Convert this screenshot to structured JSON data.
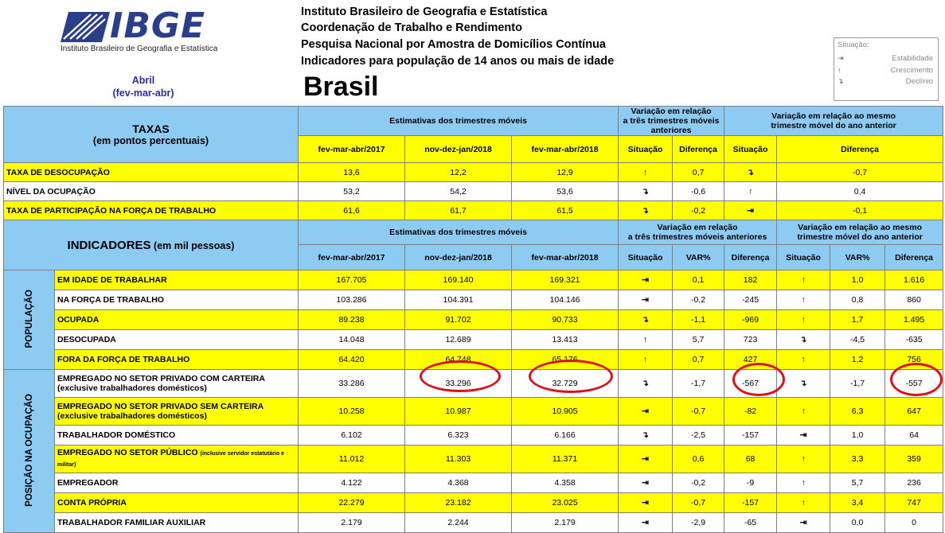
{
  "header": {
    "logo_text": "IBGE",
    "logo_subtitle": "Instituto Brasileiro de Geografia e Estatística",
    "period_month": "Abril",
    "period_range": "(fev-mar-abr)",
    "lines": [
      "Instituto Brasileiro de Geografia e Estatística",
      "Coordenação de Trabalho e Rendimento",
      "Pesquisa Nacional por Amostra de Domicílios Contínua",
      "Indicadores para população de 14 anos ou mais de idade"
    ],
    "region": "Brasil"
  },
  "legend": {
    "title": "Situação:",
    "items": [
      {
        "icon": "arrow-right-bar-icon",
        "glyph": "⇥",
        "label": "Estabilidade"
      },
      {
        "icon": "arrow-up-icon",
        "glyph": "↑",
        "label": "Crescimento"
      },
      {
        "icon": "arrow-down-hook-icon",
        "glyph": "↴",
        "label": "Declínio"
      }
    ]
  },
  "rates": {
    "title": "TAXAS",
    "subtitle": "(em pontos percentuais)",
    "est_header": "Estimativas dos trimestres móveis",
    "var_prev_header_1": "Variação em relação",
    "var_prev_header_2": "a três trimestres móveis anteriores",
    "var_year_header_1": "Variação em relação ao mesmo",
    "var_year_header_2": "trimestre móvel do ano anterior",
    "periods": [
      "fev-mar-abr/2017",
      "nov-dez-jan/2018",
      "fev-mar-abr/2018"
    ],
    "col_situacao": "Situação",
    "col_diferenca": "Diferença",
    "rows": [
      {
        "label": "TAXA DE DESOCUPAÇÃO",
        "v1": "13,6",
        "v2": "12,2",
        "v3": "12,9",
        "s1": "↑",
        "d1": "0,7",
        "s2": "↴",
        "d2": "-0,7",
        "color": "ye"
      },
      {
        "label": "NÍVEL DA OCUPAÇÃO",
        "v1": "53,2",
        "v2": "54,2",
        "v3": "53,6",
        "s1": "↴",
        "d1": "-0,6",
        "s2": "↑",
        "d2": "0,4",
        "color": "wh"
      },
      {
        "label": "TAXA DE PARTICIPAÇÃO NA FORÇA DE TRABALHO",
        "v1": "61,6",
        "v2": "61,7",
        "v3": "61,5",
        "s1": "↴",
        "d1": "-0,2",
        "s2": "⇥",
        "d2": "-0,1",
        "color": "ye"
      }
    ]
  },
  "indicators": {
    "title": "INDICADORES",
    "title_suffix": " (em mil pessoas)",
    "est_header": "Estimativas dos trimestres móveis",
    "var_prev_header_1": "Variação em relação",
    "var_prev_header_2": "a três trimestres móveis anteriores",
    "var_year_header_1": "Variação em relação ao mesmo",
    "var_year_header_2": "trimestre móvel do ano anterior",
    "periods": [
      "fev-mar-abr/2017",
      "nov-dez-jan/2018",
      "fev-mar-abr/2018"
    ],
    "col_situacao": "Situação",
    "col_var": "VAR%",
    "col_diferenca": "Diferença",
    "group_populacao": "POPULAÇÃO",
    "group_ocupacao": "POSIÇÃO NA OCUPAÇÃO",
    "rows": [
      {
        "label": "EM IDADE DE TRABALHAR",
        "small": "",
        "v1": "167.705",
        "v2": "169.140",
        "v3": "169.321",
        "s1": "⇥",
        "p1": "0,1",
        "d1": "182",
        "s2": "↑",
        "p2": "1,0",
        "d2": "1.616",
        "color": "ye"
      },
      {
        "label": "NA FORÇA DE TRABALHO",
        "small": "",
        "v1": "103.286",
        "v2": "104.391",
        "v3": "104.146",
        "s1": "⇥",
        "p1": "-0,2",
        "d1": "-245",
        "s2": "↑",
        "p2": "0,8",
        "d2": "860",
        "color": "wh"
      },
      {
        "label": "OCUPADA",
        "small": "",
        "v1": "89.238",
        "v2": "91.702",
        "v3": "90.733",
        "s1": "↴",
        "p1": "-1,1",
        "d1": "-969",
        "s2": "↑",
        "p2": "1,7",
        "d2": "1.495",
        "color": "ye"
      },
      {
        "label": "DESOCUPADA",
        "small": "",
        "v1": "14.048",
        "v2": "12.689",
        "v3": "13.413",
        "s1": "↑",
        "p1": "5,7",
        "d1": "723",
        "s2": "↴",
        "p2": "-4,5",
        "d2": "-635",
        "color": "wh"
      },
      {
        "label": "FORA DA FORÇA DE TRABALHO",
        "small": "",
        "v1": "64.420",
        "v2": "64.748",
        "v3": "65.176",
        "s1": "↑",
        "p1": "0,7",
        "d1": "427",
        "s2": "↑",
        "p2": "1,2",
        "d2": "756",
        "color": "ye"
      },
      {
        "label": "EMPREGADO NO SETOR PRIVADO COM CARTEIRA (exclusive trabalhadores domésticos)",
        "small": "",
        "v1": "33.286",
        "v2": "33.296",
        "v3": "32.729",
        "s1": "↴",
        "p1": "-1,7",
        "d1": "-567",
        "s2": "↴",
        "p2": "-1,7",
        "d2": "-557",
        "color": "wh"
      },
      {
        "label": "EMPREGADO NO SETOR PRIVADO SEM CARTEIRA (exclusive trabalhadores domésticos)",
        "small": "",
        "v1": "10.258",
        "v2": "10.987",
        "v3": "10.905",
        "s1": "⇥",
        "p1": "-0,7",
        "d1": "-82",
        "s2": "↑",
        "p2": "6,3",
        "d2": "647",
        "color": "ye"
      },
      {
        "label": "TRABALHADOR DOMÉSTICO",
        "small": "",
        "v1": "6.102",
        "v2": "6.323",
        "v3": "6.166",
        "s1": "↴",
        "p1": "-2,5",
        "d1": "-157",
        "s2": "⇥",
        "p2": "1,0",
        "d2": "64",
        "color": "wh"
      },
      {
        "label": "EMPREGADO NO SETOR PÚBLICO",
        "small": "(inclusive servidor estatutário e militar)",
        "v1": "11.012",
        "v2": "11.303",
        "v3": "11.371",
        "s1": "⇥",
        "p1": "0,6",
        "d1": "68",
        "s2": "↑",
        "p2": "3,3",
        "d2": "359",
        "color": "ye"
      },
      {
        "label": "EMPREGADOR",
        "small": "",
        "v1": "4.122",
        "v2": "4.368",
        "v3": "4.358",
        "s1": "⇥",
        "p1": "-0,2",
        "d1": "-9",
        "s2": "↑",
        "p2": "5,7",
        "d2": "236",
        "color": "wh"
      },
      {
        "label": "CONTA PRÓPRIA",
        "small": "",
        "v1": "22.279",
        "v2": "23.182",
        "v3": "23.025",
        "s1": "⇥",
        "p1": "-0,7",
        "d1": "-157",
        "s2": "↑",
        "p2": "3,4",
        "d2": "747",
        "color": "ye"
      },
      {
        "label": "TRABALHADOR FAMILIAR AUXILIAR",
        "small": "",
        "v1": "2.179",
        "v2": "2.244",
        "v3": "2.179",
        "s1": "⇥",
        "p1": "-2,9",
        "d1": "-65",
        "s2": "⇥",
        "p2": "0,0",
        "d2": "0",
        "color": "wh"
      }
    ]
  },
  "colors": {
    "header_blue": "#8ecbf2",
    "row_yellow": "#ffff00",
    "highlight_red": "#e0101a",
    "logo_blue": "#2a3e8c"
  }
}
